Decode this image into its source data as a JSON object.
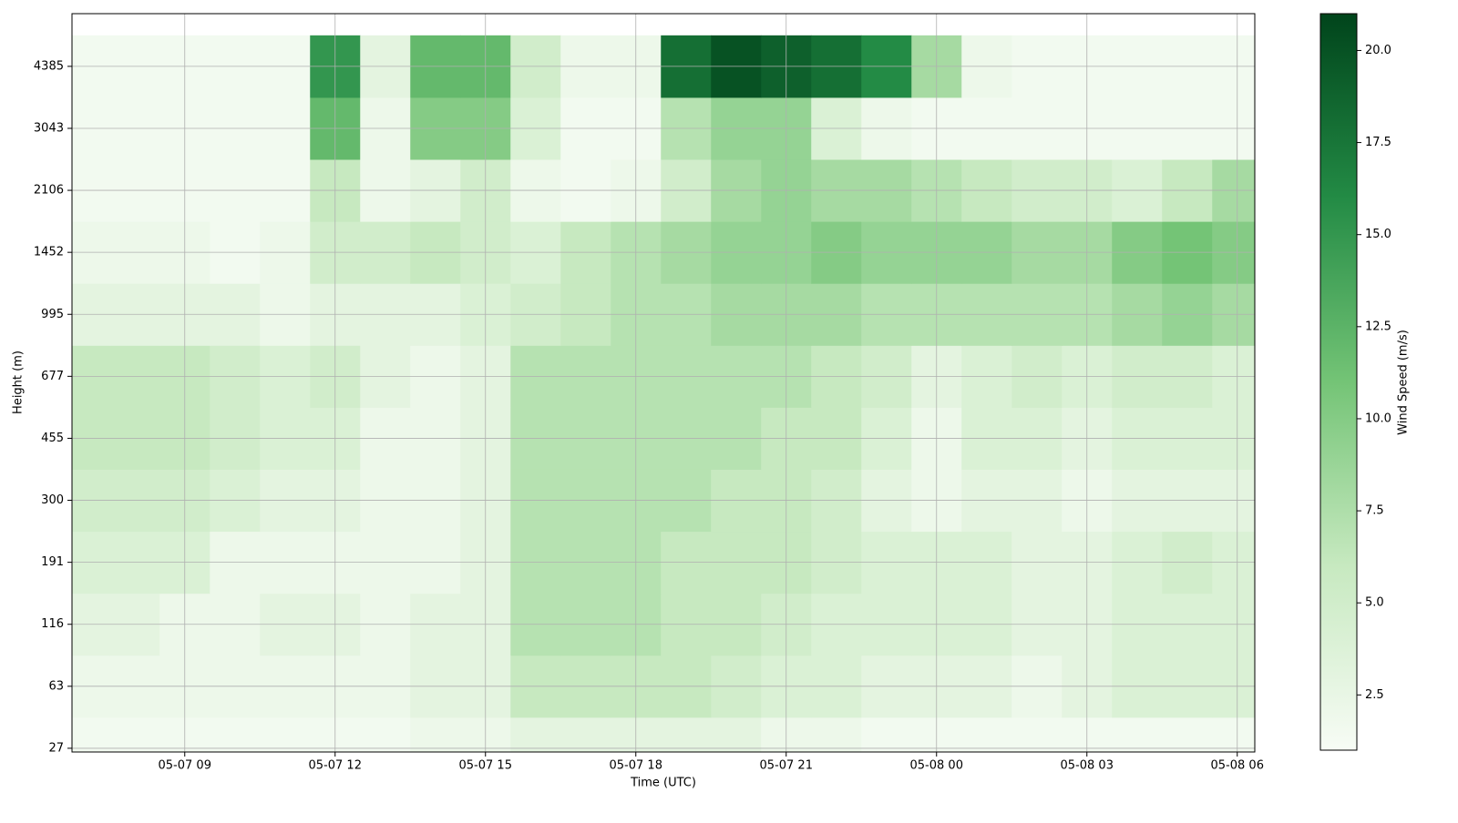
{
  "chart_data": {
    "type": "heatmap",
    "x_label": "Time (UTC)",
    "y_label": "Height (m)",
    "colorbar_label": "Wind Speed (m/s)",
    "xlim": [
      6.75,
      30.35
    ],
    "xticks": [
      {
        "value": 9,
        "label": "05-07 09"
      },
      {
        "value": 12,
        "label": "05-07 12"
      },
      {
        "value": 15,
        "label": "05-07 15"
      },
      {
        "value": 18,
        "label": "05-07 18"
      },
      {
        "value": 21,
        "label": "05-07 21"
      },
      {
        "value": 24,
        "label": "05-08 00"
      },
      {
        "value": 27,
        "label": "05-08 03"
      },
      {
        "value": 30,
        "label": "05-08 06"
      }
    ],
    "ylim": [
      -0.06,
      11.85
    ],
    "levels": [
      27,
      63,
      116,
      191,
      300,
      455,
      677,
      995,
      1452,
      2106,
      3043,
      4385
    ],
    "x": [
      7,
      8,
      9,
      10,
      11,
      12,
      13,
      14,
      15,
      16,
      17,
      18,
      19,
      20,
      21,
      22,
      23,
      24,
      25,
      26,
      27,
      28,
      29,
      30
    ],
    "z": [
      [
        1.5,
        1.5,
        1.5,
        1.5,
        1.5,
        1.5,
        1.5,
        2,
        2,
        3,
        3,
        3,
        3,
        3,
        2,
        2,
        1.5,
        1.5,
        1.5,
        1.5,
        1.5,
        1.5,
        1.5,
        1.5
      ],
      [
        2,
        2,
        2,
        2,
        2,
        2,
        2,
        3,
        3,
        6,
        6,
        6,
        6,
        5,
        4,
        4,
        3,
        3,
        3,
        2,
        3,
        4,
        4,
        4
      ],
      [
        3,
        3,
        2,
        2,
        3,
        3,
        2,
        3,
        3,
        7,
        7,
        7,
        6,
        6,
        5,
        4,
        4,
        4,
        4,
        3,
        3,
        4,
        4,
        4
      ],
      [
        4,
        4,
        4,
        2,
        2,
        2,
        2,
        2,
        3,
        7,
        7,
        7,
        6,
        6,
        6,
        5,
        4,
        4,
        4,
        3,
        3,
        4,
        5,
        4
      ],
      [
        5,
        5,
        5,
        4,
        3,
        3,
        2,
        2,
        3,
        7,
        7,
        7,
        7,
        6,
        6,
        5,
        3,
        2,
        3,
        3,
        2,
        3,
        3,
        3
      ],
      [
        6,
        6,
        6,
        5,
        4,
        4,
        2,
        2,
        3,
        7,
        7,
        7,
        7,
        7,
        6,
        6,
        4,
        2,
        4,
        4,
        3,
        4,
        4,
        4
      ],
      [
        6,
        6,
        6,
        5,
        4,
        5,
        3,
        2,
        3,
        7,
        7,
        7,
        7,
        7,
        7,
        6,
        5,
        3,
        4,
        5,
        4,
        5,
        5,
        4
      ],
      [
        3,
        3,
        3,
        3,
        2,
        3,
        3,
        3,
        4,
        5,
        6,
        7,
        7,
        8,
        8,
        8,
        7,
        7,
        7,
        7,
        7,
        8,
        9,
        8
      ],
      [
        2,
        2,
        2,
        1.5,
        2,
        5,
        5,
        6,
        5,
        4,
        6,
        7,
        8,
        9,
        9,
        10,
        9,
        9,
        9,
        8,
        8,
        10,
        11,
        10
      ],
      [
        1.5,
        1.5,
        1.5,
        1.5,
        1.5,
        6,
        2,
        3,
        5,
        2,
        1.5,
        2,
        5,
        8,
        9,
        8,
        8,
        7,
        6,
        5,
        5,
        4,
        6,
        8
      ],
      [
        1.5,
        1.5,
        1.5,
        1.5,
        1.5,
        12,
        2,
        10,
        10,
        4,
        1.5,
        1.5,
        7,
        9,
        9,
        4,
        2,
        1.5,
        1.5,
        1.5,
        1.5,
        1.5,
        1.5,
        1.5
      ],
      [
        1.5,
        1.5,
        1.5,
        1.5,
        1.5,
        15,
        3,
        12,
        12,
        5,
        2,
        2,
        18,
        20,
        19,
        18,
        16,
        8,
        2,
        1.5,
        1.5,
        1.5,
        1.5,
        1.5
      ]
    ],
    "clim": [
      1,
      21
    ],
    "colorbar_ticks": [
      {
        "value": 2.5,
        "label": "2.5"
      },
      {
        "value": 5,
        "label": "5.0"
      },
      {
        "value": 7.5,
        "label": "7.5"
      },
      {
        "value": 10,
        "label": "10.0"
      },
      {
        "value": 12.5,
        "label": "12.5"
      },
      {
        "value": 15,
        "label": "15.0"
      },
      {
        "value": 17.5,
        "label": "17.5"
      },
      {
        "value": 20,
        "label": "20.0"
      }
    ],
    "colormap": [
      "#f7fcf5",
      "#c7e9c0",
      "#74c476",
      "#238b45",
      "#00441b"
    ],
    "grid": true
  }
}
